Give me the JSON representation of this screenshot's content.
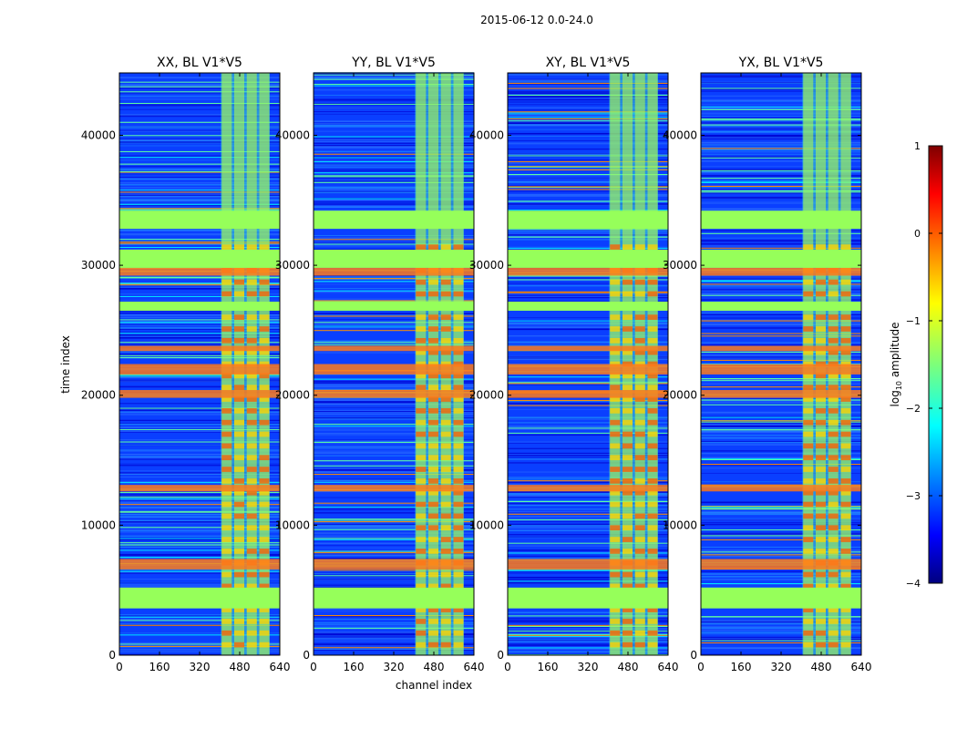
{
  "figure": {
    "suptitle": "2015-06-12 0.0-24.0"
  },
  "chart_data": {
    "type": "heatmap",
    "xlabel": "channel index",
    "ylabel": "time index",
    "xlim": [
      0,
      640
    ],
    "ylim": [
      0,
      44800
    ],
    "x_ticks": [
      0,
      160,
      320,
      480,
      640
    ],
    "y_ticks": [
      0,
      10000,
      20000,
      30000,
      40000
    ],
    "panels": [
      {
        "title": "XX, BL V1*V5"
      },
      {
        "title": "YY, BL V1*V5"
      },
      {
        "title": "XY, BL V1*V5"
      },
      {
        "title": "YX, BL V1*V5"
      }
    ],
    "colorbar": {
      "label_prefix": "log",
      "label_sub": "10",
      "label_suffix": " amplitude",
      "range": [
        -4,
        1
      ],
      "ticks": [
        -4,
        -3,
        -2,
        -1,
        0,
        1
      ],
      "colormap": "jet"
    },
    "features": {
      "rfi_channel_band": [
        405,
        600
      ],
      "comb_channels": [
        430,
        480,
        530,
        580
      ],
      "flagged_green_rows": [
        [
          3600,
          5200
        ],
        [
          26500,
          27200
        ],
        [
          29800,
          31200
        ],
        [
          32800,
          34200
        ]
      ],
      "strong_rows": [
        [
          6600,
          7400
        ],
        [
          12600,
          13100
        ],
        [
          19800,
          20400
        ],
        [
          21600,
          22400
        ],
        [
          23400,
          23800
        ],
        [
          29200,
          29800
        ]
      ]
    }
  }
}
